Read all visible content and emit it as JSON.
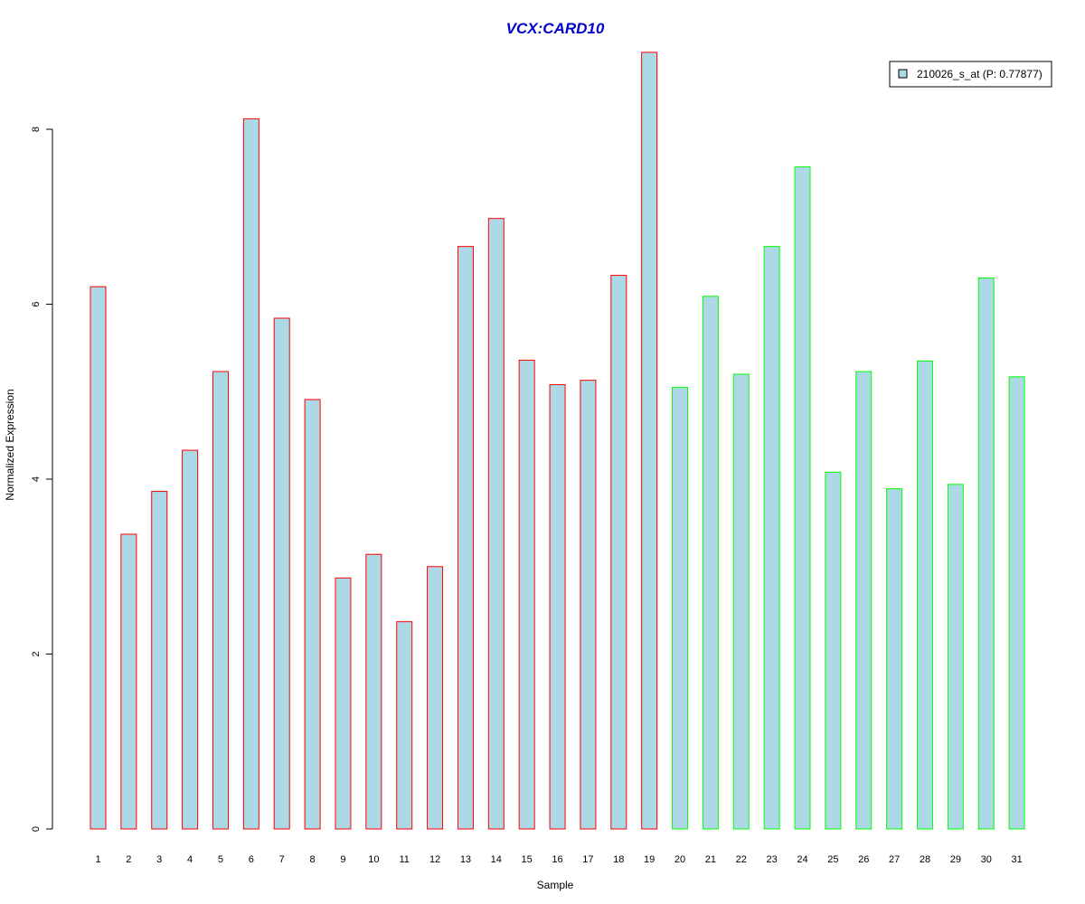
{
  "chart_data": {
    "type": "bar",
    "title": "VCX:CARD10",
    "xlabel": "Sample",
    "ylabel": "Normalized Expression",
    "ylim": [
      0,
      9
    ],
    "yticks": [
      "0",
      "2",
      "4",
      "6",
      "8"
    ],
    "grid": false,
    "legend_position": "top-right",
    "categories": [
      "1",
      "2",
      "3",
      "4",
      "5",
      "6",
      "7",
      "8",
      "9",
      "10",
      "11",
      "12",
      "13",
      "14",
      "15",
      "16",
      "17",
      "18",
      "19",
      "20",
      "21",
      "22",
      "23",
      "24",
      "25",
      "26",
      "27",
      "28",
      "29",
      "30",
      "31"
    ],
    "series": [
      {
        "name": "210026_s_at (P: 0.77877)",
        "values": [
          6.2,
          3.37,
          3.86,
          4.33,
          5.23,
          8.12,
          5.84,
          4.91,
          2.87,
          3.14,
          2.37,
          3.0,
          6.66,
          6.98,
          5.36,
          5.08,
          5.13,
          6.33,
          8.88,
          5.05,
          6.09,
          5.2,
          6.66,
          7.57,
          4.08,
          5.23,
          3.89,
          5.35,
          3.94,
          6.3,
          5.17
        ],
        "group": [
          "g1",
          "g1",
          "g1",
          "g1",
          "g1",
          "g1",
          "g1",
          "g1",
          "g1",
          "g1",
          "g1",
          "g1",
          "g1",
          "g1",
          "g1",
          "g1",
          "g1",
          "g1",
          "g1",
          "g2",
          "g2",
          "g2",
          "g2",
          "g2",
          "g2",
          "g2",
          "g2",
          "g2",
          "g2",
          "g2",
          "g2"
        ]
      }
    ],
    "colors": {
      "bar_fill": "#add8e6",
      "group_border": {
        "g1": "#ff0000",
        "g2": "#00ff00"
      },
      "title": "#0000cd",
      "axis": "#000000"
    }
  }
}
